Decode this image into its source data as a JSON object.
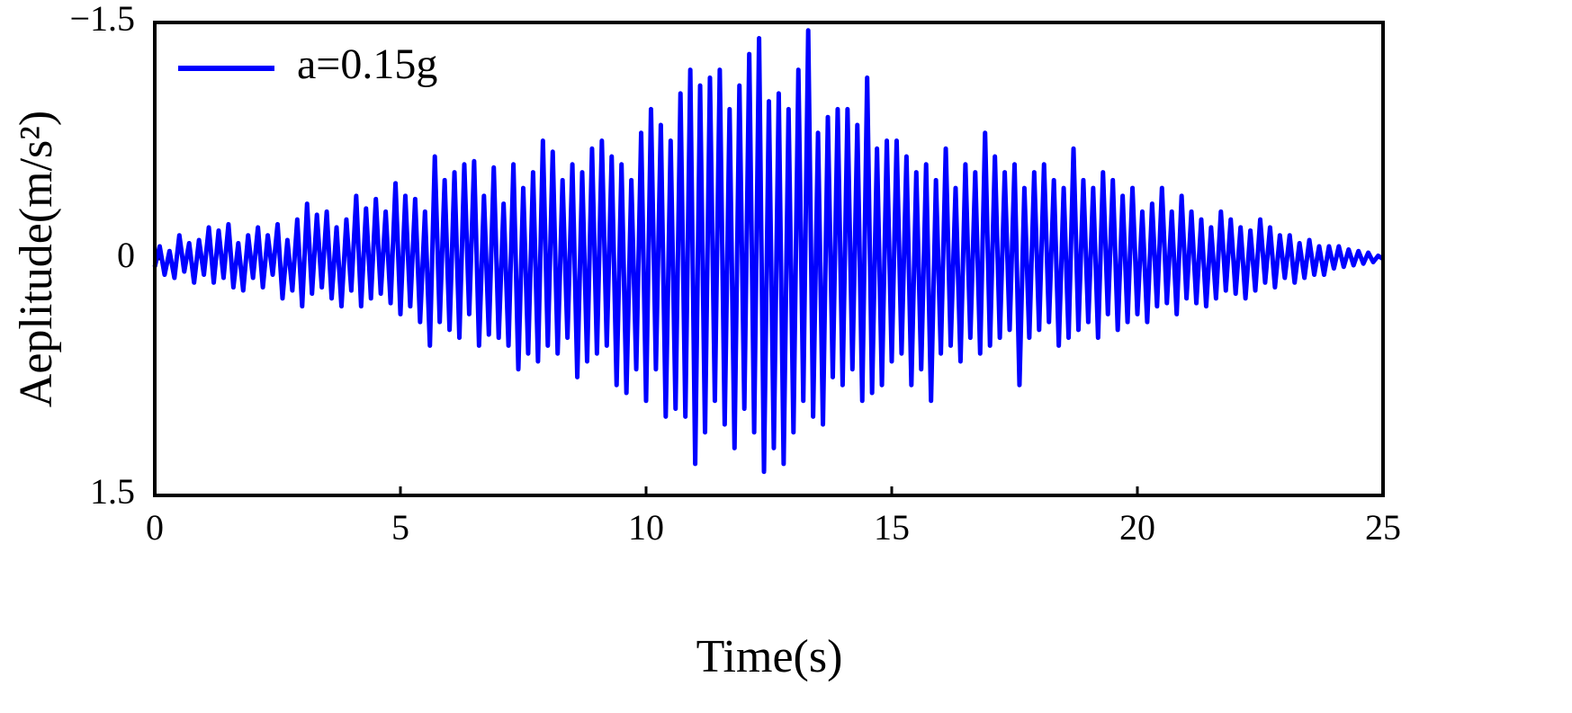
{
  "chart_data": {
    "type": "line",
    "xlabel": "Time(s)",
    "ylabel": "Aeplitude(m/s²)",
    "xlim": [
      0,
      25
    ],
    "xticks": [
      0,
      5,
      10,
      15,
      20,
      25
    ],
    "ylim": [
      1.5,
      -1.5
    ],
    "yticks": [
      {
        "value": -1.5,
        "label": "−1.5"
      },
      0,
      1.5
    ],
    "legend": "upper left",
    "x": [
      0,
      0.1,
      0.2,
      0.3,
      0.4,
      0.5,
      0.6,
      0.7,
      0.8,
      0.9,
      1,
      1.1,
      1.2,
      1.3,
      1.4,
      1.5,
      1.6,
      1.7,
      1.8,
      1.9,
      2,
      2.1,
      2.2,
      2.3,
      2.4,
      2.5,
      2.6,
      2.7,
      2.8,
      2.9,
      3,
      3.1,
      3.2,
      3.3,
      3.4,
      3.5,
      3.6,
      3.7,
      3.8,
      3.9,
      4,
      4.1,
      4.2,
      4.3,
      4.4,
      4.5,
      4.6,
      4.7,
      4.8,
      4.9,
      5,
      5.1,
      5.2,
      5.3,
      5.4,
      5.5,
      5.6,
      5.7,
      5.8,
      5.9,
      6,
      6.1,
      6.2,
      6.3,
      6.4,
      6.5,
      6.6,
      6.7,
      6.8,
      6.9,
      7,
      7.1,
      7.2,
      7.3,
      7.4,
      7.5,
      7.6,
      7.7,
      7.8,
      7.9,
      8,
      8.1,
      8.2,
      8.3,
      8.4,
      8.5,
      8.6,
      8.7,
      8.8,
      8.9,
      9,
      9.1,
      9.2,
      9.3,
      9.4,
      9.5,
      9.6,
      9.7,
      9.8,
      9.9,
      10,
      10.1,
      10.2,
      10.3,
      10.4,
      10.5,
      10.6,
      10.7,
      10.8,
      10.9,
      11,
      11.1,
      11.2,
      11.3,
      11.4,
      11.5,
      11.6,
      11.7,
      11.8,
      11.9,
      12,
      12.1,
      12.2,
      12.3,
      12.4,
      12.5,
      12.6,
      12.7,
      12.8,
      12.9,
      13,
      13.1,
      13.2,
      13.3,
      13.4,
      13.5,
      13.6,
      13.7,
      13.8,
      13.9,
      14,
      14.1,
      14.2,
      14.3,
      14.4,
      14.5,
      14.6,
      14.7,
      14.8,
      14.9,
      15,
      15.1,
      15.2,
      15.3,
      15.4,
      15.5,
      15.6,
      15.7,
      15.8,
      15.9,
      16,
      16.1,
      16.2,
      16.3,
      16.4,
      16.5,
      16.6,
      16.7,
      16.8,
      16.9,
      17,
      17.1,
      17.2,
      17.3,
      17.4,
      17.5,
      17.6,
      17.7,
      17.8,
      17.9,
      18,
      18.1,
      18.2,
      18.3,
      18.4,
      18.5,
      18.6,
      18.7,
      18.8,
      18.9,
      19,
      19.1,
      19.2,
      19.3,
      19.4,
      19.5,
      19.6,
      19.7,
      19.8,
      19.9,
      20,
      20.1,
      20.2,
      20.3,
      20.4,
      20.5,
      20.6,
      20.7,
      20.8,
      20.9,
      21,
      21.1,
      21.2,
      21.3,
      21.4,
      21.5,
      21.6,
      21.7,
      21.8,
      21.9,
      22,
      22.1,
      22.2,
      22.3,
      22.4,
      22.5,
      22.6,
      22.7,
      22.8,
      22.9,
      23,
      23.1,
      23.2,
      23.3,
      23.4,
      23.5,
      23.6,
      23.7,
      23.8,
      23.9,
      24,
      24.1,
      24.2,
      24.3,
      24.4,
      24.5,
      24.6,
      24.7,
      24.8,
      24.9,
      25
    ],
    "series": [
      {
        "name": "a=0.15g",
        "color": "#0000ff",
        "values": [
          0.05,
          -0.08,
          0.1,
          -0.05,
          0.12,
          -0.15,
          0.08,
          -0.1,
          0.15,
          -0.12,
          0.1,
          -0.2,
          0.15,
          -0.18,
          0.12,
          -0.22,
          0.18,
          -0.1,
          0.2,
          -0.15,
          0.12,
          -0.2,
          0.18,
          -0.15,
          0.1,
          -0.22,
          0.25,
          -0.12,
          0.2,
          -0.25,
          0.3,
          -0.35,
          0.22,
          -0.28,
          0.18,
          -0.3,
          0.25,
          -0.2,
          0.3,
          -0.25,
          0.2,
          -0.4,
          0.3,
          -0.32,
          0.25,
          -0.38,
          0.22,
          -0.3,
          0.28,
          -0.48,
          0.35,
          -0.4,
          0.3,
          -0.38,
          0.4,
          -0.3,
          0.55,
          -0.65,
          0.4,
          -0.5,
          0.45,
          -0.55,
          0.5,
          -0.6,
          0.35,
          -0.62,
          0.55,
          -0.4,
          0.48,
          -0.58,
          0.5,
          -0.35,
          0.55,
          -0.6,
          0.7,
          -0.45,
          0.6,
          -0.55,
          0.65,
          -0.75,
          0.55,
          -0.68,
          0.6,
          -0.5,
          0.5,
          -0.6,
          0.75,
          -0.55,
          0.65,
          -0.7,
          0.6,
          -0.75,
          0.55,
          -0.65,
          0.8,
          -0.6,
          0.85,
          -0.5,
          0.7,
          -0.8,
          0.9,
          -0.95,
          0.7,
          -0.85,
          1.0,
          -0.75,
          0.95,
          -1.05,
          1.0,
          -1.2,
          1.3,
          -1.1,
          1.1,
          -1.15,
          0.9,
          -1.2,
          1.05,
          -0.95,
          1.2,
          -1.1,
          0.95,
          -1.3,
          1.1,
          -1.4,
          1.35,
          -1.0,
          1.2,
          -1.05,
          1.3,
          -0.95,
          1.1,
          -1.2,
          0.9,
          -1.45,
          1.0,
          -0.8,
          1.05,
          -0.9,
          0.75,
          -0.95,
          0.8,
          -0.95,
          0.7,
          -0.85,
          0.9,
          -1.15,
          0.85,
          -0.7,
          0.8,
          -0.75,
          0.65,
          -0.75,
          0.6,
          -0.65,
          0.8,
          -0.55,
          0.7,
          -0.6,
          0.9,
          -0.5,
          0.6,
          -0.7,
          0.55,
          -0.45,
          0.65,
          -0.6,
          0.5,
          -0.55,
          0.6,
          -0.8,
          0.55,
          -0.65,
          0.5,
          -0.55,
          0.45,
          -0.6,
          0.8,
          -0.45,
          0.5,
          -0.55,
          0.45,
          -0.6,
          0.4,
          -0.5,
          0.55,
          -0.45,
          0.5,
          -0.7,
          0.45,
          -0.5,
          0.4,
          -0.45,
          0.5,
          -0.55,
          0.35,
          -0.5,
          0.45,
          -0.4,
          0.4,
          -0.45,
          0.35,
          -0.3,
          0.4,
          -0.35,
          0.3,
          -0.45,
          0.28,
          -0.3,
          0.35,
          -0.4,
          0.25,
          -0.3,
          0.28,
          -0.25,
          0.3,
          -0.2,
          0.25,
          -0.3,
          0.2,
          -0.25,
          0.22,
          -0.2,
          0.25,
          -0.18,
          0.2,
          -0.25,
          0.15,
          -0.2,
          0.18,
          -0.15,
          0.12,
          -0.15,
          0.15,
          -0.1,
          0.12,
          -0.12,
          0.1,
          -0.08,
          0.1,
          -0.08,
          0.06,
          -0.08,
          0.05,
          -0.06,
          0.04,
          -0.05,
          0.03,
          -0.04,
          0.02,
          -0.02,
          0.0
        ]
      }
    ]
  }
}
